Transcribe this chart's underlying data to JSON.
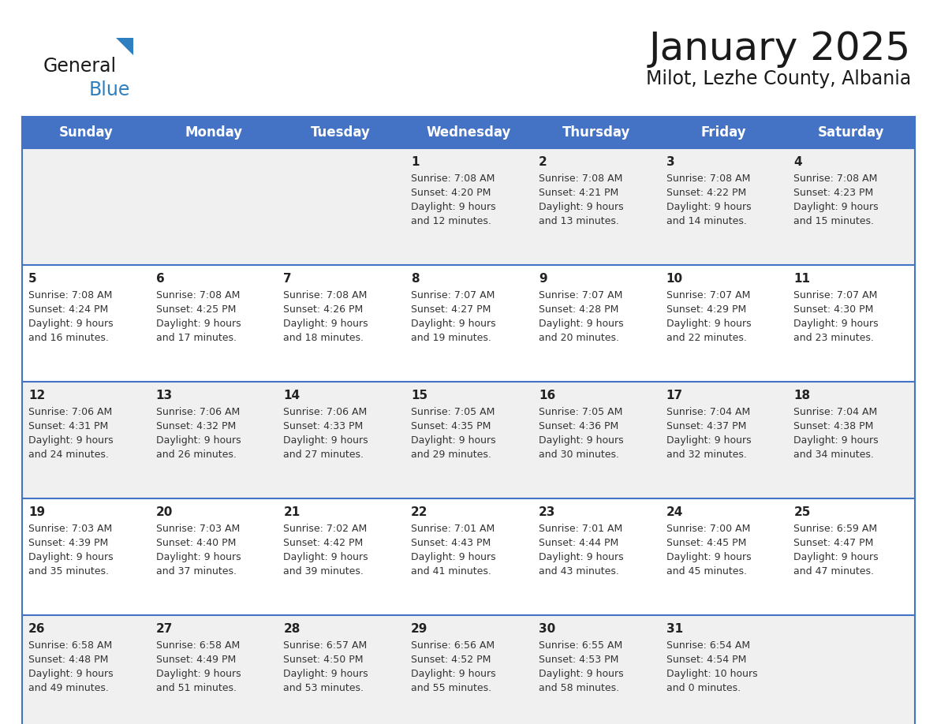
{
  "title": "January 2025",
  "subtitle": "Milot, Lezhe County, Albania",
  "header_bg": "#4472C4",
  "header_text_color": "#FFFFFF",
  "days_of_week": [
    "Sunday",
    "Monday",
    "Tuesday",
    "Wednesday",
    "Thursday",
    "Friday",
    "Saturday"
  ],
  "row_bg_even": "#F0F0F0",
  "row_bg_odd": "#FFFFFF",
  "cell_text_color": "#333333",
  "day_num_color": "#222222",
  "border_color": "#4472C4",
  "calendar_data": [
    [
      {
        "day": "",
        "sunrise": "",
        "sunset": "",
        "daylight": ""
      },
      {
        "day": "",
        "sunrise": "",
        "sunset": "",
        "daylight": ""
      },
      {
        "day": "",
        "sunrise": "",
        "sunset": "",
        "daylight": ""
      },
      {
        "day": "1",
        "sunrise": "7:08 AM",
        "sunset": "4:20 PM",
        "daylight": "9 hours\nand 12 minutes."
      },
      {
        "day": "2",
        "sunrise": "7:08 AM",
        "sunset": "4:21 PM",
        "daylight": "9 hours\nand 13 minutes."
      },
      {
        "day": "3",
        "sunrise": "7:08 AM",
        "sunset": "4:22 PM",
        "daylight": "9 hours\nand 14 minutes."
      },
      {
        "day": "4",
        "sunrise": "7:08 AM",
        "sunset": "4:23 PM",
        "daylight": "9 hours\nand 15 minutes."
      }
    ],
    [
      {
        "day": "5",
        "sunrise": "7:08 AM",
        "sunset": "4:24 PM",
        "daylight": "9 hours\nand 16 minutes."
      },
      {
        "day": "6",
        "sunrise": "7:08 AM",
        "sunset": "4:25 PM",
        "daylight": "9 hours\nand 17 minutes."
      },
      {
        "day": "7",
        "sunrise": "7:08 AM",
        "sunset": "4:26 PM",
        "daylight": "9 hours\nand 18 minutes."
      },
      {
        "day": "8",
        "sunrise": "7:07 AM",
        "sunset": "4:27 PM",
        "daylight": "9 hours\nand 19 minutes."
      },
      {
        "day": "9",
        "sunrise": "7:07 AM",
        "sunset": "4:28 PM",
        "daylight": "9 hours\nand 20 minutes."
      },
      {
        "day": "10",
        "sunrise": "7:07 AM",
        "sunset": "4:29 PM",
        "daylight": "9 hours\nand 22 minutes."
      },
      {
        "day": "11",
        "sunrise": "7:07 AM",
        "sunset": "4:30 PM",
        "daylight": "9 hours\nand 23 minutes."
      }
    ],
    [
      {
        "day": "12",
        "sunrise": "7:06 AM",
        "sunset": "4:31 PM",
        "daylight": "9 hours\nand 24 minutes."
      },
      {
        "day": "13",
        "sunrise": "7:06 AM",
        "sunset": "4:32 PM",
        "daylight": "9 hours\nand 26 minutes."
      },
      {
        "day": "14",
        "sunrise": "7:06 AM",
        "sunset": "4:33 PM",
        "daylight": "9 hours\nand 27 minutes."
      },
      {
        "day": "15",
        "sunrise": "7:05 AM",
        "sunset": "4:35 PM",
        "daylight": "9 hours\nand 29 minutes."
      },
      {
        "day": "16",
        "sunrise": "7:05 AM",
        "sunset": "4:36 PM",
        "daylight": "9 hours\nand 30 minutes."
      },
      {
        "day": "17",
        "sunrise": "7:04 AM",
        "sunset": "4:37 PM",
        "daylight": "9 hours\nand 32 minutes."
      },
      {
        "day": "18",
        "sunrise": "7:04 AM",
        "sunset": "4:38 PM",
        "daylight": "9 hours\nand 34 minutes."
      }
    ],
    [
      {
        "day": "19",
        "sunrise": "7:03 AM",
        "sunset": "4:39 PM",
        "daylight": "9 hours\nand 35 minutes."
      },
      {
        "day": "20",
        "sunrise": "7:03 AM",
        "sunset": "4:40 PM",
        "daylight": "9 hours\nand 37 minutes."
      },
      {
        "day": "21",
        "sunrise": "7:02 AM",
        "sunset": "4:42 PM",
        "daylight": "9 hours\nand 39 minutes."
      },
      {
        "day": "22",
        "sunrise": "7:01 AM",
        "sunset": "4:43 PM",
        "daylight": "9 hours\nand 41 minutes."
      },
      {
        "day": "23",
        "sunrise": "7:01 AM",
        "sunset": "4:44 PM",
        "daylight": "9 hours\nand 43 minutes."
      },
      {
        "day": "24",
        "sunrise": "7:00 AM",
        "sunset": "4:45 PM",
        "daylight": "9 hours\nand 45 minutes."
      },
      {
        "day": "25",
        "sunrise": "6:59 AM",
        "sunset": "4:47 PM",
        "daylight": "9 hours\nand 47 minutes."
      }
    ],
    [
      {
        "day": "26",
        "sunrise": "6:58 AM",
        "sunset": "4:48 PM",
        "daylight": "9 hours\nand 49 minutes."
      },
      {
        "day": "27",
        "sunrise": "6:58 AM",
        "sunset": "4:49 PM",
        "daylight": "9 hours\nand 51 minutes."
      },
      {
        "day": "28",
        "sunrise": "6:57 AM",
        "sunset": "4:50 PM",
        "daylight": "9 hours\nand 53 minutes."
      },
      {
        "day": "29",
        "sunrise": "6:56 AM",
        "sunset": "4:52 PM",
        "daylight": "9 hours\nand 55 minutes."
      },
      {
        "day": "30",
        "sunrise": "6:55 AM",
        "sunset": "4:53 PM",
        "daylight": "9 hours\nand 58 minutes."
      },
      {
        "day": "31",
        "sunrise": "6:54 AM",
        "sunset": "4:54 PM",
        "daylight": "10 hours\nand 0 minutes."
      },
      {
        "day": "",
        "sunrise": "",
        "sunset": "",
        "daylight": ""
      }
    ]
  ]
}
